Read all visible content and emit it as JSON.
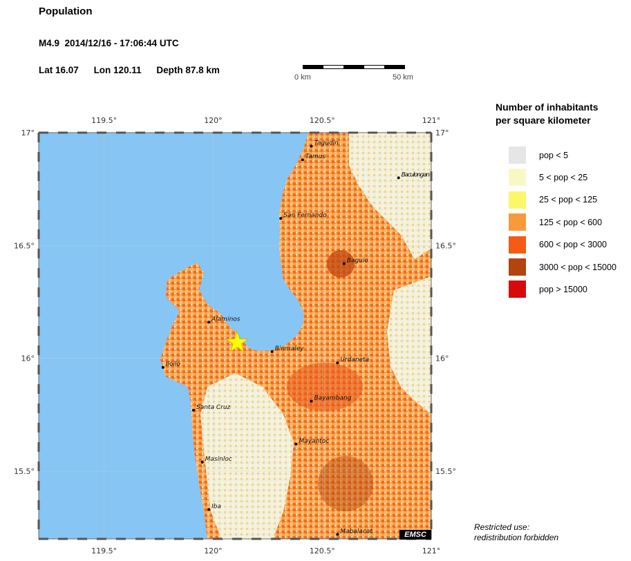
{
  "header": {
    "title": "Population",
    "event": "M4.9  2014/12/16 - 17:06:44 UTC",
    "lat": "Lat 16.07",
    "lon": "Lon 120.11",
    "depth": "Depth  87.8 km"
  },
  "scale": {
    "start_label": "0 km",
    "end_label": "50 km"
  },
  "map": {
    "lon_ticks": [
      "119.5°",
      "120°",
      "120.5°",
      "121°"
    ],
    "lat_ticks": [
      "17°",
      "16.5°",
      "16°",
      "15.5°"
    ],
    "epicenter": {
      "lon": 120.11,
      "lat": 16.07
    },
    "cities": [
      {
        "name": "Tagudin",
        "lon": 120.45,
        "lat": 16.94
      },
      {
        "name": "Tamus",
        "lon": 120.41,
        "lat": 16.88
      },
      {
        "name": "Baculongan",
        "lon": 120.85,
        "lat": 16.8
      },
      {
        "name": "San Fernando",
        "lon": 120.31,
        "lat": 16.62
      },
      {
        "name": "Baguio",
        "lon": 120.6,
        "lat": 16.42
      },
      {
        "name": "Alaminos",
        "lon": 119.98,
        "lat": 16.16
      },
      {
        "name": "Binmaley",
        "lon": 120.27,
        "lat": 16.03
      },
      {
        "name": "Urdaneta",
        "lon": 120.57,
        "lat": 15.98
      },
      {
        "name": "Iloilo",
        "lon": 119.77,
        "lat": 15.96
      },
      {
        "name": "Bayambang",
        "lon": 120.45,
        "lat": 15.81
      },
      {
        "name": "Santa Cruz",
        "lon": 119.91,
        "lat": 15.77
      },
      {
        "name": "Mayantoc",
        "lon": 120.38,
        "lat": 15.62
      },
      {
        "name": "Masinloc",
        "lon": 119.95,
        "lat": 15.54
      },
      {
        "name": "Iba",
        "lon": 119.98,
        "lat": 15.33
      },
      {
        "name": "Mabalacat",
        "lon": 120.57,
        "lat": 15.22
      }
    ]
  },
  "legend": {
    "title_line1": "Number of inhabitants",
    "title_line2": "per square kilometer",
    "items": [
      {
        "label": "pop < 5",
        "color": "#e6e6e6"
      },
      {
        "label": "5 < pop < 25",
        "color": "#f9f7c6"
      },
      {
        "label": "25 < pop < 125",
        "color": "#faf76a"
      },
      {
        "label": "125 < pop < 600",
        "color": "#f99a3a"
      },
      {
        "label": "600 < pop < 3000",
        "color": "#f55a16"
      },
      {
        "label": "3000 < pop < 15000",
        "color": "#b3440f"
      },
      {
        "label": "pop > 15000",
        "color": "#d7090a"
      }
    ]
  },
  "footer": {
    "restricted_line1": "Restricted use:",
    "restricted_line2": "redistribution forbidden",
    "logo": "EMSC"
  }
}
